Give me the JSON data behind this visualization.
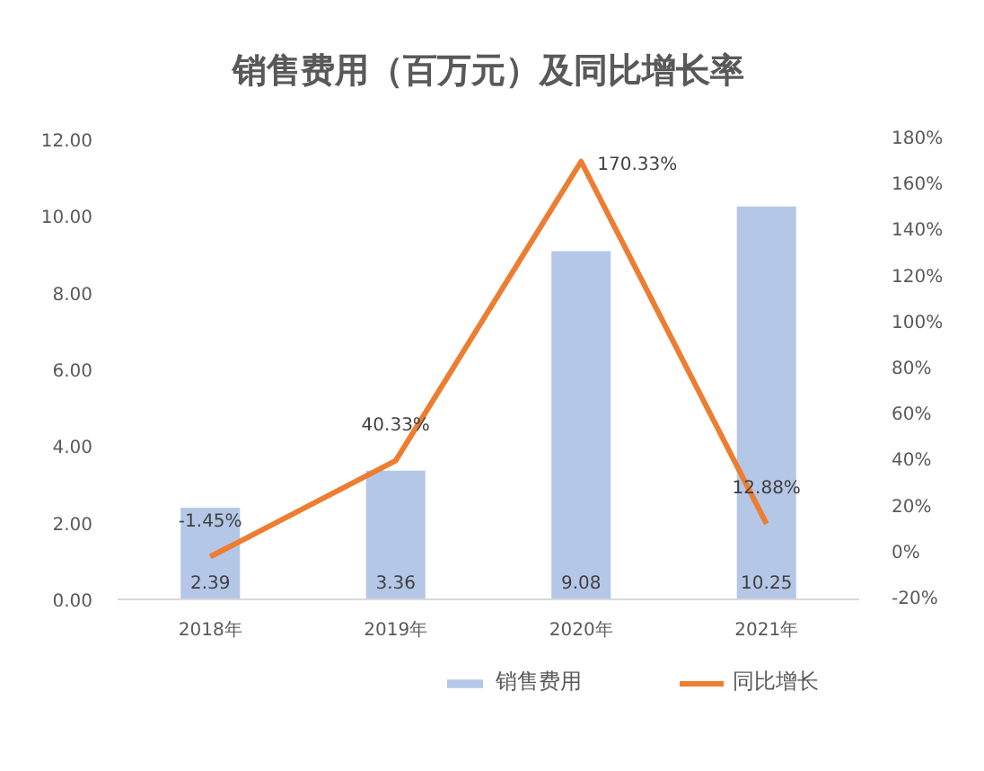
{
  "chart_data": {
    "type": "bar",
    "title": "销售费用（百万元）及同比增长率",
    "categories": [
      "2018年",
      "2019年",
      "2020年",
      "2021年"
    ],
    "series": [
      {
        "name": "销售费用",
        "color": "#b4c7e7",
        "values": [
          2.39,
          3.36,
          9.08,
          10.25
        ],
        "value_labels": [
          "2.39",
          "3.36",
          "9.08",
          "10.25"
        ]
      },
      {
        "name": "同比增长",
        "type": "line",
        "axis": "y2",
        "color": "#ed7d31",
        "values": [
          -1.45,
          40.33,
          170.33,
          12.88
        ],
        "value_labels": [
          "-1.45%",
          "40.33%",
          "170.33%",
          "12.88%"
        ]
      }
    ],
    "ylim": [
      0,
      12
    ],
    "yticks": [
      {
        "value": 0,
        "label": "0.00"
      },
      {
        "value": 2,
        "label": "2.00"
      },
      {
        "value": 4,
        "label": "4.00"
      },
      {
        "value": 6,
        "label": "6.00"
      },
      {
        "value": 8,
        "label": "8.00"
      },
      {
        "value": 10,
        "label": "10.00"
      },
      {
        "value": 12,
        "label": "12.00"
      }
    ],
    "y2lim": [
      -20,
      180
    ],
    "y2ticks": [
      {
        "value": -20,
        "label": "-20%"
      },
      {
        "value": 0,
        "label": "0%"
      },
      {
        "value": 20,
        "label": "20%"
      },
      {
        "value": 40,
        "label": "40%"
      },
      {
        "value": 60,
        "label": "60%"
      },
      {
        "value": 80,
        "label": "80%"
      },
      {
        "value": 100,
        "label": "100%"
      },
      {
        "value": 120,
        "label": "120%"
      },
      {
        "value": 140,
        "label": "140%"
      },
      {
        "value": 160,
        "label": "160%"
      },
      {
        "value": 180,
        "label": "180%"
      }
    ],
    "legend": "bottom"
  }
}
